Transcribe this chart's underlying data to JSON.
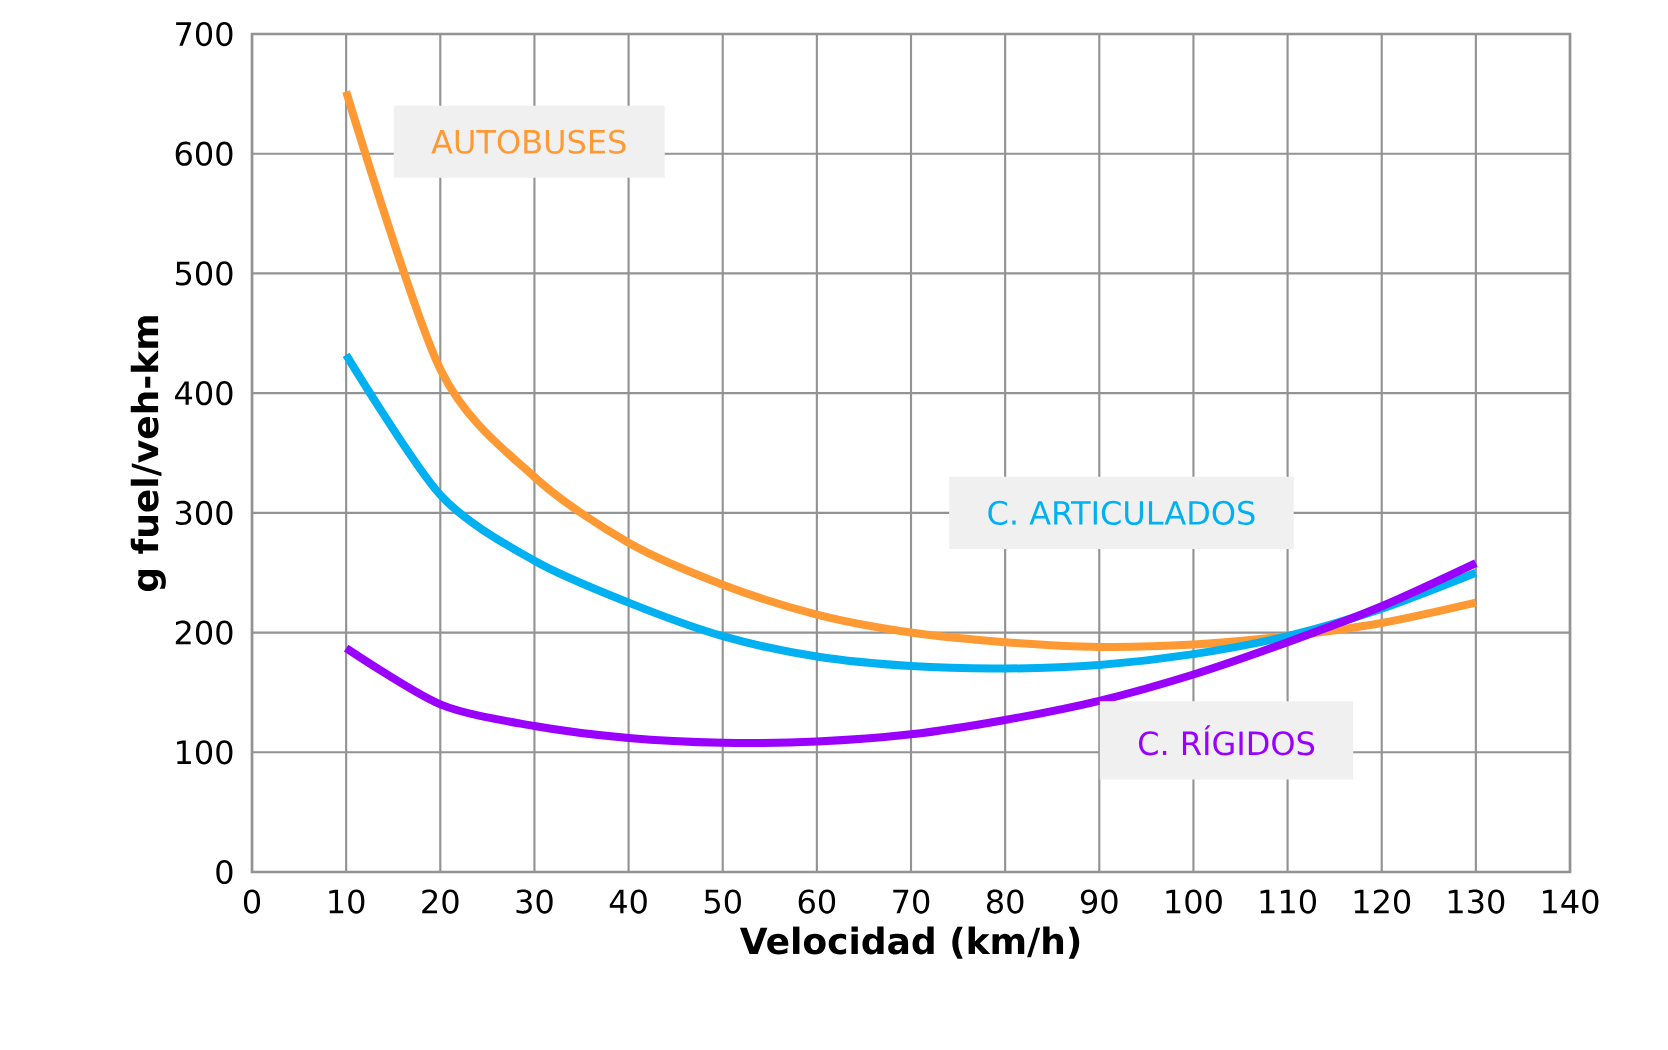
{
  "chart_data": {
    "type": "line",
    "xlabel": "Velocidad (km/h)",
    "ylabel": "g fuel/veh-km",
    "x": [
      10,
      20,
      30,
      40,
      50,
      60,
      70,
      80,
      90,
      100,
      110,
      120,
      130
    ],
    "series": [
      {
        "name": "AUTOBUSES",
        "color": "#ff9933",
        "values": [
          652,
          420,
          330,
          275,
          240,
          215,
          200,
          192,
          188,
          190,
          197,
          208,
          225
        ]
      },
      {
        "name": "C. ARTICULADOS",
        "color": "#00b0f0",
        "values": [
          432,
          315,
          260,
          225,
          197,
          180,
          172,
          170,
          173,
          182,
          197,
          220,
          250
        ]
      },
      {
        "name": "C. RÍGIDOS",
        "color": "#9900ff",
        "values": [
          187,
          140,
          122,
          112,
          108,
          109,
          115,
          127,
          143,
          165,
          192,
          222,
          258
        ]
      }
    ],
    "xlim": [
      0,
      140
    ],
    "ylim": [
      0,
      700
    ],
    "xticks": [
      0,
      10,
      20,
      30,
      40,
      50,
      60,
      70,
      80,
      90,
      100,
      110,
      120,
      130,
      140
    ],
    "yticks": [
      0,
      100,
      200,
      300,
      400,
      500,
      600,
      700
    ],
    "grid": true,
    "legend": false,
    "marker": "none",
    "line_style": "solid"
  }
}
